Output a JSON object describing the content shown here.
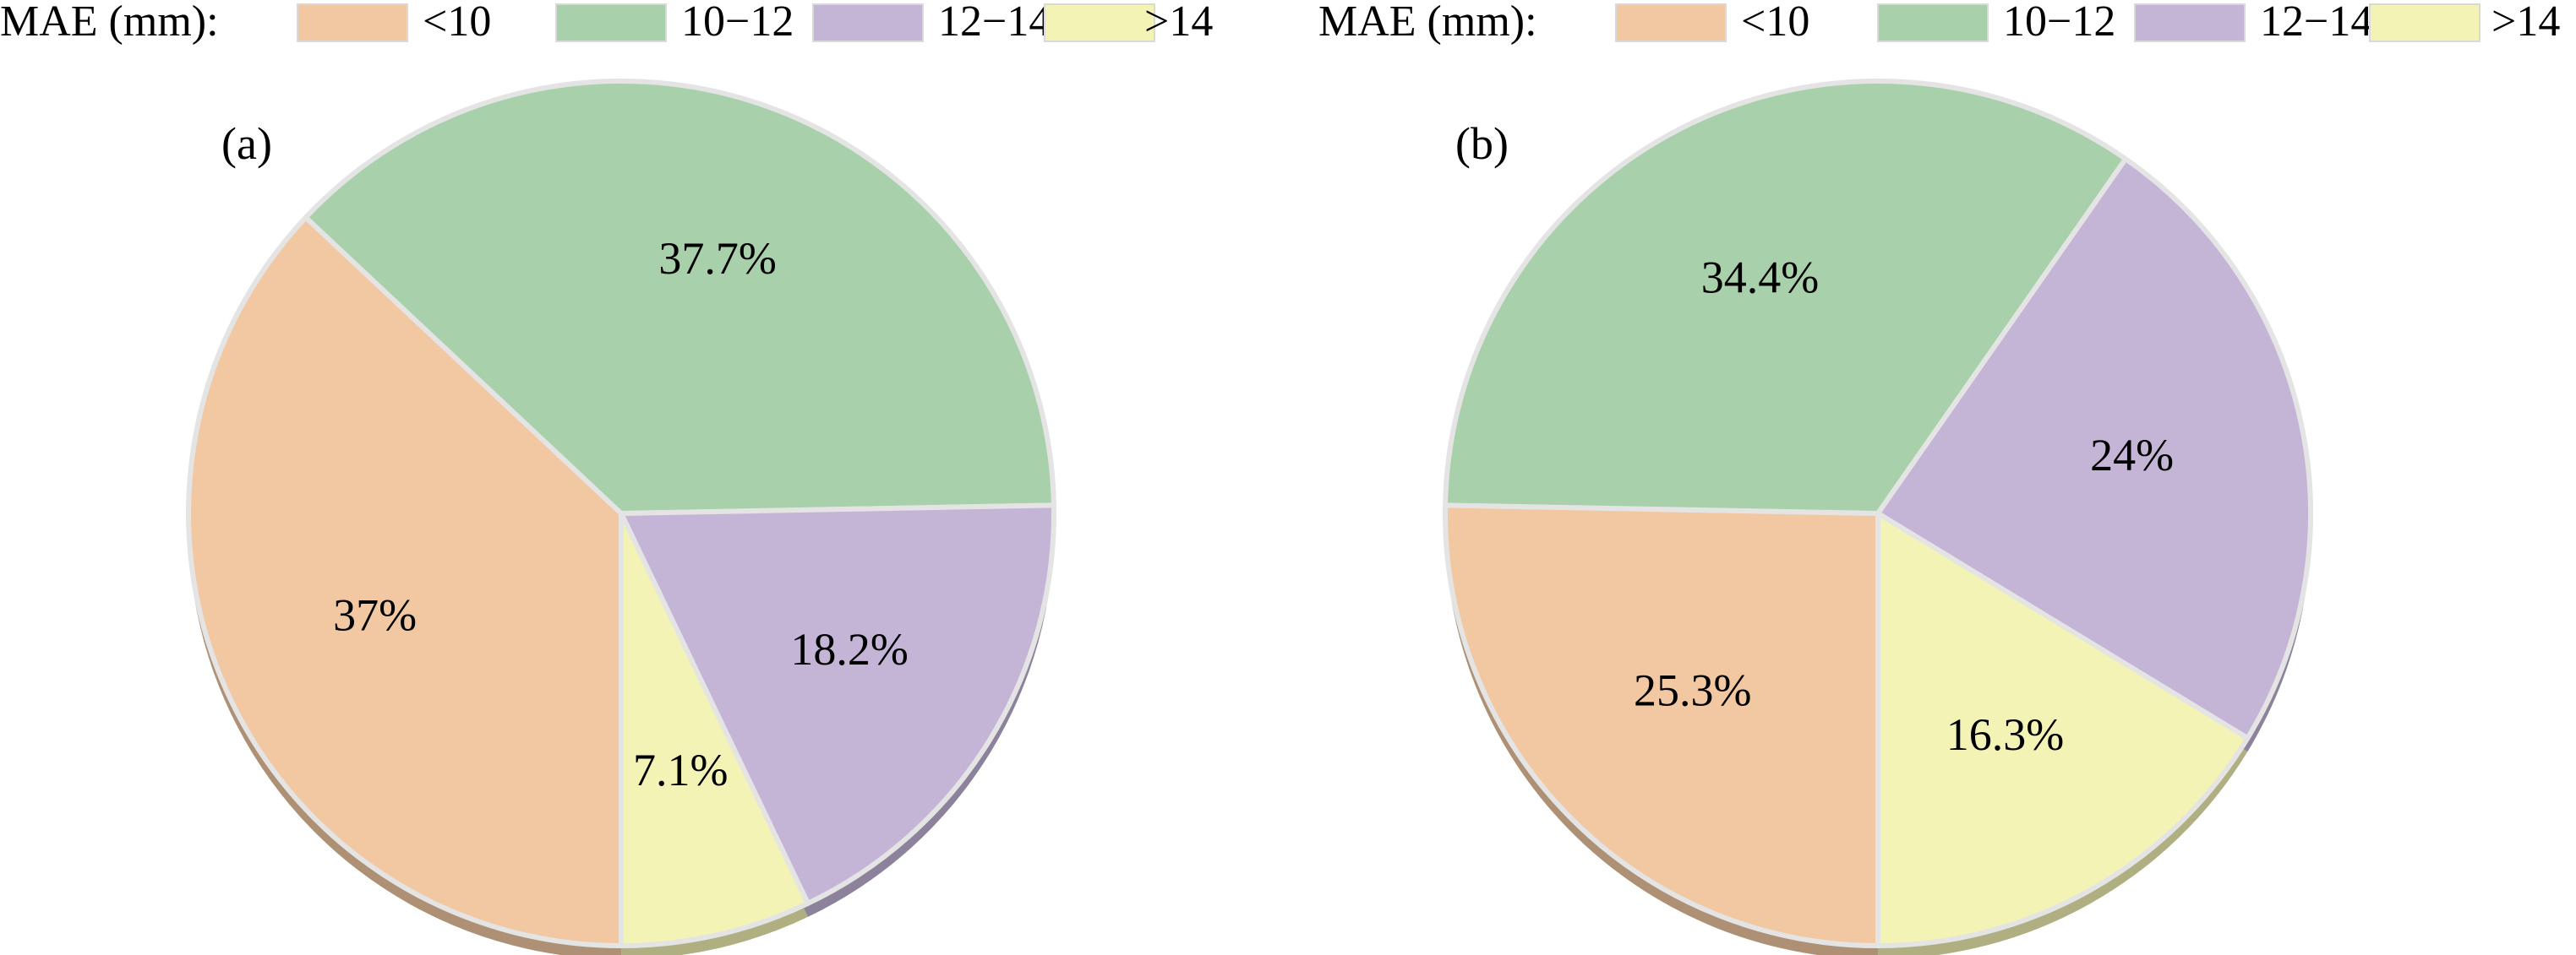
{
  "chart_data": [
    {
      "type": "pie",
      "panel_label": "(a)",
      "legend_title": "MAE (mm):",
      "legend_position": "top",
      "categories": [
        "<10",
        "10−12",
        "12−14",
        ">14"
      ],
      "values": [
        37,
        37.7,
        18.2,
        7.1
      ],
      "value_labels": [
        "37%",
        "37.7%",
        "18.2%",
        "7.1%"
      ],
      "colors": [
        "#F2C8A2",
        "#A8D0AB",
        "#C4B5D7",
        "#F3F3B5"
      ]
    },
    {
      "type": "pie",
      "panel_label": "(b)",
      "legend_title": "MAE (mm):",
      "legend_position": "top",
      "categories": [
        "<10",
        "10−12",
        "12−14",
        ">14"
      ],
      "values": [
        25.3,
        34.4,
        24,
        16.3
      ],
      "value_labels": [
        "25.3%",
        "34.4%",
        "24%",
        "16.3%"
      ],
      "colors": [
        "#F2C8A2",
        "#A8D0AB",
        "#C4B5D7",
        "#F3F3B5"
      ]
    }
  ]
}
